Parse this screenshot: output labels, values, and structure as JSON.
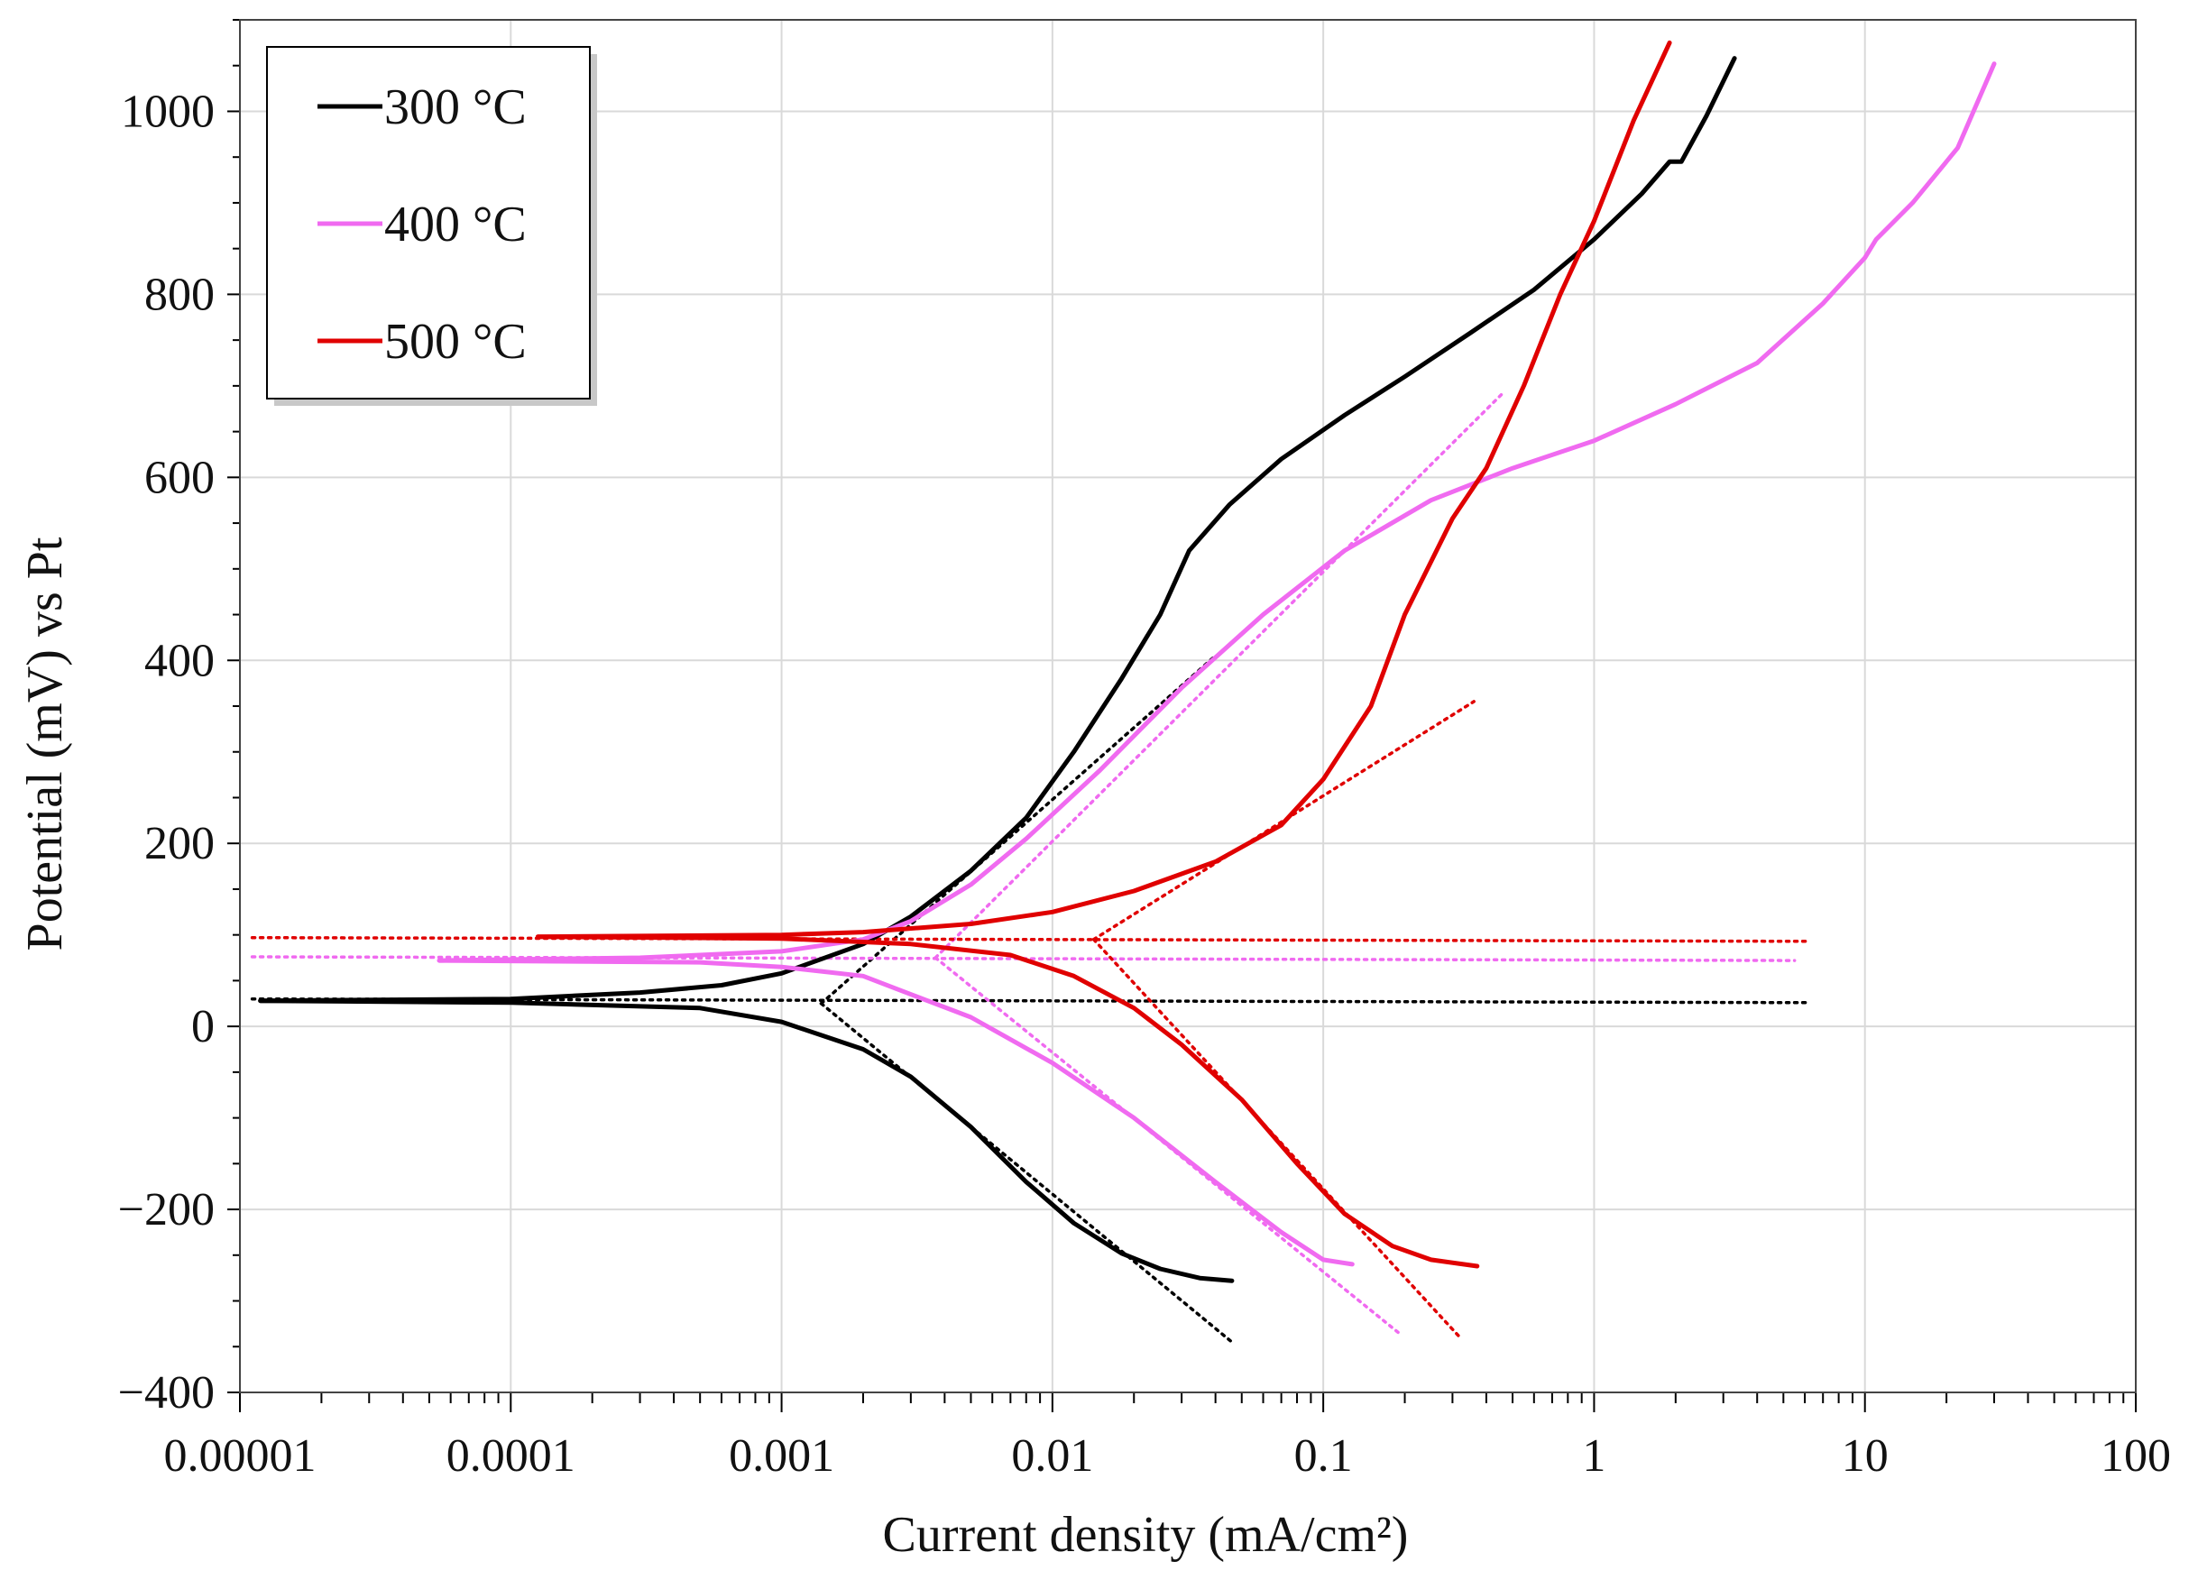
{
  "chart_data": {
    "type": "line",
    "title": "",
    "xlabel": "Current density (mA/cm²)",
    "ylabel": "Potential (mV) vs Pt",
    "xscale": "log",
    "xlim": [
      1e-05,
      100
    ],
    "ylim": [
      -400,
      1100
    ],
    "grid": true,
    "legend_position": "top-left",
    "x_tick_values": [
      1e-05,
      0.0001,
      0.001,
      0.01,
      0.1,
      1,
      10,
      100
    ],
    "x_tick_labels": [
      "0.00001",
      "0.0001",
      "0.001",
      "0.01",
      "0.1",
      "1",
      "10",
      "100"
    ],
    "y_tick_values": [
      -400,
      -200,
      0,
      200,
      400,
      600,
      800,
      1000
    ],
    "y_tick_labels": [
      "−400",
      "−200",
      "0",
      "200",
      "400",
      "600",
      "800",
      "1000"
    ],
    "series": [
      {
        "name": "300 °C",
        "color": "#000000",
        "anodic": [
          [
            1.19e-05,
            28
          ],
          [
            0.0001,
            30
          ],
          [
            0.0003,
            37
          ],
          [
            0.0006,
            45
          ],
          [
            0.001,
            58
          ],
          [
            0.002,
            90
          ],
          [
            0.003,
            120
          ],
          [
            0.005,
            170
          ],
          [
            0.008,
            228
          ],
          [
            0.012,
            300
          ],
          [
            0.018,
            380
          ],
          [
            0.025,
            450
          ],
          [
            0.032,
            520
          ],
          [
            0.045,
            570
          ],
          [
            0.07,
            620
          ],
          [
            0.12,
            668
          ],
          [
            0.2,
            710
          ],
          [
            0.35,
            758
          ],
          [
            0.6,
            805
          ],
          [
            1.0,
            860
          ],
          [
            1.5,
            910
          ],
          [
            1.9,
            945
          ],
          [
            2.1,
            945
          ],
          [
            2.6,
            995
          ],
          [
            3.3,
            1058
          ]
        ],
        "cathodic": [
          [
            1.19e-05,
            28
          ],
          [
            0.0001,
            26
          ],
          [
            0.0005,
            20
          ],
          [
            0.001,
            5
          ],
          [
            0.002,
            -25
          ],
          [
            0.003,
            -55
          ],
          [
            0.005,
            -110
          ],
          [
            0.008,
            -170
          ],
          [
            0.012,
            -215
          ],
          [
            0.018,
            -248
          ],
          [
            0.025,
            -265
          ],
          [
            0.035,
            -275
          ],
          [
            0.046,
            -278
          ]
        ],
        "tafel_lines": [
          [
            [
              1.11e-05,
              30
            ],
            [
              6.1,
              26
            ]
          ],
          [
            [
              0.0014,
              25
            ],
            [
              0.04,
              405
            ]
          ],
          [
            [
              0.0014,
              25
            ],
            [
              0.046,
              -345
            ]
          ]
        ]
      },
      {
        "name": "400 °C",
        "color": "#f06af0",
        "anodic": [
          [
            5.45e-05,
            72
          ],
          [
            0.0003,
            75
          ],
          [
            0.001,
            82
          ],
          [
            0.002,
            95
          ],
          [
            0.003,
            115
          ],
          [
            0.005,
            155
          ],
          [
            0.008,
            205
          ],
          [
            0.015,
            280
          ],
          [
            0.03,
            370
          ],
          [
            0.06,
            450
          ],
          [
            0.12,
            520
          ],
          [
            0.25,
            575
          ],
          [
            0.5,
            610
          ],
          [
            1.0,
            640
          ],
          [
            2.0,
            680
          ],
          [
            4.0,
            725
          ],
          [
            7.0,
            790
          ],
          [
            10.0,
            840
          ],
          [
            11.0,
            860
          ],
          [
            15.0,
            900
          ],
          [
            22.0,
            960
          ],
          [
            30.0,
            1052
          ]
        ],
        "cathodic": [
          [
            5.45e-05,
            72
          ],
          [
            0.0005,
            70
          ],
          [
            0.001,
            65
          ],
          [
            0.002,
            55
          ],
          [
            0.003,
            35
          ],
          [
            0.005,
            10
          ],
          [
            0.01,
            -40
          ],
          [
            0.02,
            -100
          ],
          [
            0.04,
            -170
          ],
          [
            0.07,
            -225
          ],
          [
            0.1,
            -255
          ],
          [
            0.128,
            -260
          ]
        ],
        "tafel_lines": [
          [
            [
              1.11e-05,
              76
            ],
            [
              5.5,
              72
            ]
          ],
          [
            [
              0.0037,
              75
            ],
            [
              0.46,
              692
            ]
          ],
          [
            [
              0.0037,
              75
            ],
            [
              0.19,
              -335
            ]
          ]
        ]
      },
      {
        "name": "500 °C",
        "color": "#e00000",
        "anodic": [
          [
            0.000126,
            98
          ],
          [
            0.001,
            100
          ],
          [
            0.002,
            103
          ],
          [
            0.005,
            112
          ],
          [
            0.01,
            125
          ],
          [
            0.02,
            148
          ],
          [
            0.04,
            180
          ],
          [
            0.07,
            220
          ],
          [
            0.1,
            270
          ],
          [
            0.15,
            350
          ],
          [
            0.2,
            450
          ],
          [
            0.3,
            555
          ],
          [
            0.4,
            610
          ],
          [
            0.55,
            700
          ],
          [
            0.75,
            800
          ],
          [
            1.0,
            880
          ],
          [
            1.4,
            990
          ],
          [
            1.9,
            1075
          ]
        ],
        "cathodic": [
          [
            0.000126,
            98
          ],
          [
            0.001,
            96
          ],
          [
            0.003,
            90
          ],
          [
            0.007,
            78
          ],
          [
            0.012,
            55
          ],
          [
            0.02,
            20
          ],
          [
            0.03,
            -20
          ],
          [
            0.05,
            -80
          ],
          [
            0.08,
            -150
          ],
          [
            0.12,
            -205
          ],
          [
            0.18,
            -240
          ],
          [
            0.25,
            -255
          ],
          [
            0.37,
            -262
          ]
        ],
        "tafel_lines": [
          [
            [
              1.11e-05,
              97
            ],
            [
              6.1,
              93
            ]
          ],
          [
            [
              0.0142,
              95
            ],
            [
              0.36,
              355
            ]
          ],
          [
            [
              0.0142,
              95
            ],
            [
              0.32,
              -340
            ]
          ]
        ]
      }
    ]
  }
}
